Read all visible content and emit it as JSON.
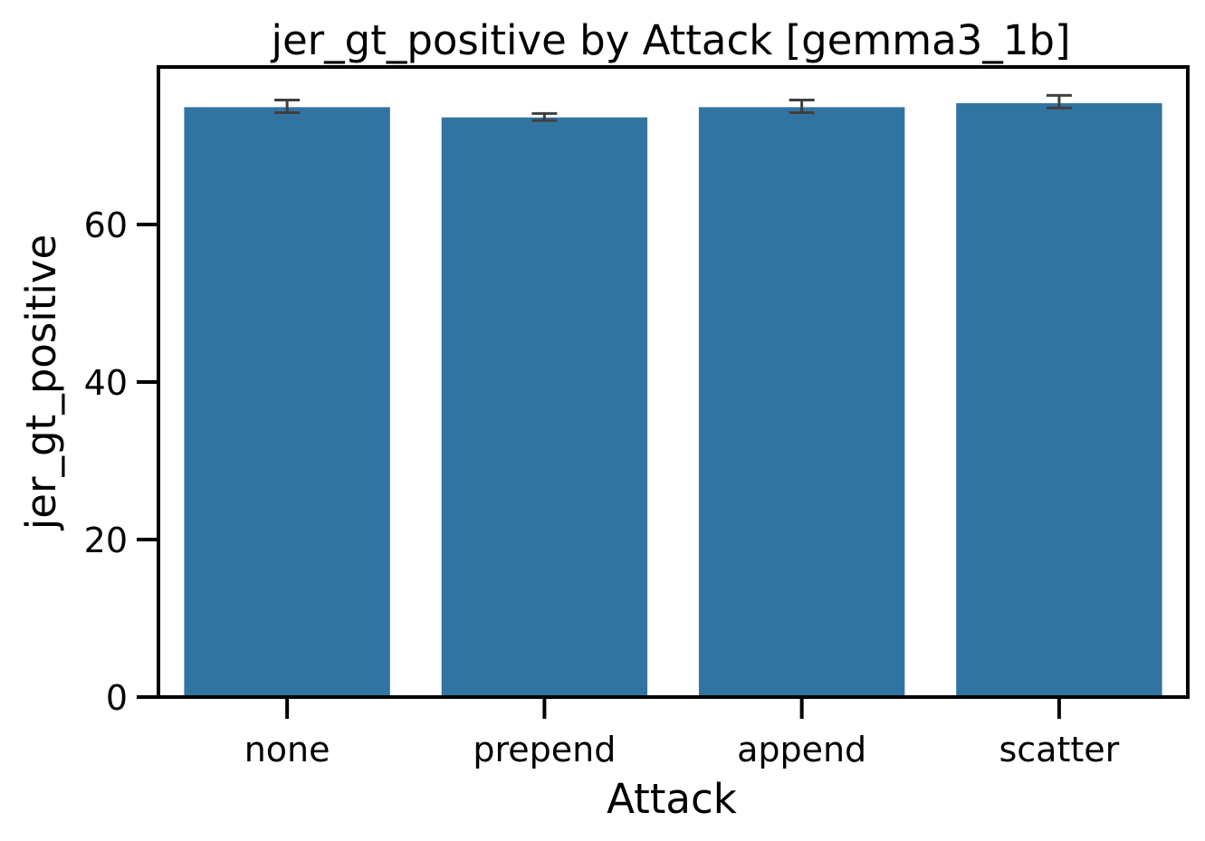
{
  "chart_data": {
    "type": "bar",
    "title": "jer_gt_positive by Attack [gemma3_1b]",
    "xlabel": "Attack",
    "ylabel": "jer_gt_positive",
    "categories": [
      "none",
      "prepend",
      "append",
      "scatter"
    ],
    "values": [
      74.9,
      73.6,
      74.9,
      75.4
    ],
    "error_bars": [
      {
        "low": 74.2,
        "high": 75.8
      },
      {
        "low": 73.2,
        "high": 74.1
      },
      {
        "low": 74.2,
        "high": 75.8
      },
      {
        "low": 74.8,
        "high": 76.4
      }
    ],
    "ylim": [
      0,
      80
    ],
    "yticks": [
      0,
      20,
      40,
      60
    ],
    "ytick_labels": [
      "0",
      "20",
      "40",
      "60"
    ],
    "bar_color": "#3274a1",
    "errorbar_color": "#3f3f3f",
    "grid": false,
    "legend": false
  }
}
